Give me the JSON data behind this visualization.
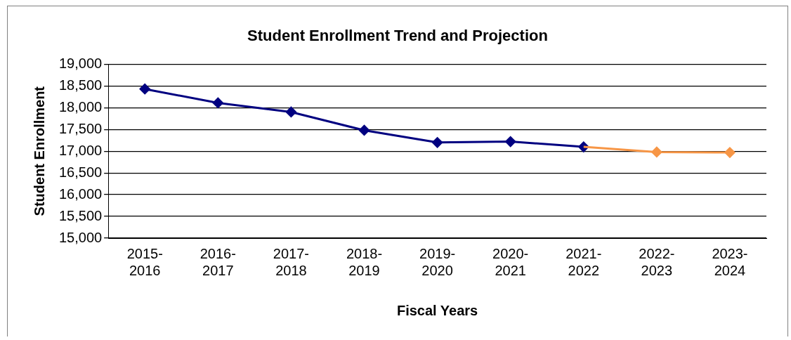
{
  "chart_data": {
    "type": "line",
    "title": "Student Enrollment Trend and Projection",
    "xlabel": "Fiscal Years",
    "ylabel": "Student Enrollment",
    "categories": [
      "2015-\n2016",
      "2016-\n2017",
      "2017-\n2018",
      "2018-\n2019",
      "2019-\n2020",
      "2020-\n2021",
      "2021-\n2022",
      "2022-\n2023",
      "2023-\n2024"
    ],
    "series": [
      {
        "color": "#000080",
        "values": [
          18430,
          18110,
          17900,
          17480,
          17200,
          17220,
          17100,
          null,
          null
        ]
      },
      {
        "color": "#f79646",
        "values": [
          null,
          null,
          null,
          null,
          null,
          null,
          17100,
          16980,
          16970
        ]
      }
    ],
    "ylim": [
      15000,
      19000
    ],
    "yticks": [
      {
        "value": 15000,
        "label": "15,000"
      },
      {
        "value": 15500,
        "label": "15,500"
      },
      {
        "value": 16000,
        "label": "16,000"
      },
      {
        "value": 16500,
        "label": "16,500"
      },
      {
        "value": 17000,
        "label": "17,000"
      },
      {
        "value": 17500,
        "label": "17,500"
      },
      {
        "value": 18000,
        "label": "18,000"
      },
      {
        "value": 18500,
        "label": "18,500"
      },
      {
        "value": 19000,
        "label": "19,000"
      }
    ],
    "grid": "y",
    "legend": false,
    "marker": "diamond",
    "line_style": "solid"
  }
}
